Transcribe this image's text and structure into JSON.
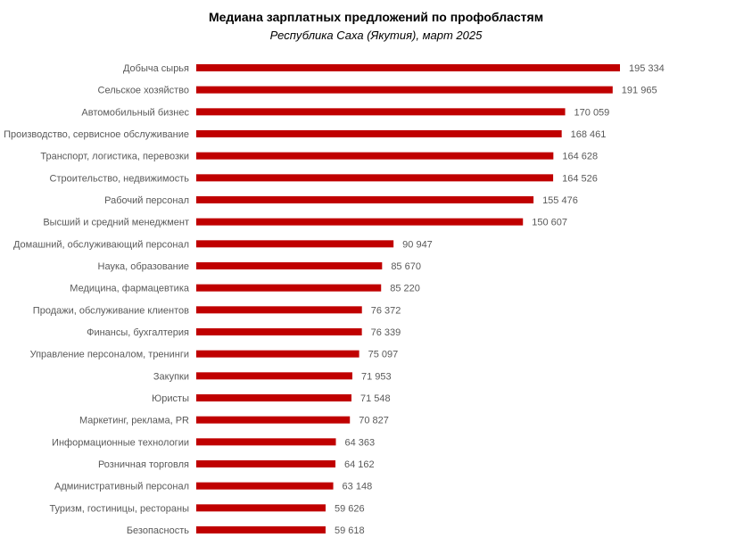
{
  "chart_data": {
    "type": "bar",
    "orientation": "horizontal",
    "title": "Медиана зарплатных предложений по профобластям",
    "subtitle": "Республика Саха (Якутия), март 2025",
    "xlabel": "",
    "ylabel": "",
    "grid": false,
    "legend": "none",
    "bar_color": "#c00000",
    "categories": [
      "Добыча сырья",
      "Сельское хозяйство",
      "Автомобильный бизнес",
      "Производство, сервисное обслуживание",
      "Транспорт, логистика, перевозки",
      "Строительство, недвижимость",
      "Рабочий персонал",
      "Высший и средний менеджмент",
      "Домашний, обслуживающий персонал",
      "Наука, образование",
      "Медицина, фармацевтика",
      "Продажи, обслуживание клиентов",
      "Финансы, бухгалтерия",
      "Управление персоналом, тренинги",
      "Закупки",
      "Юристы",
      "Маркетинг, реклама, PR",
      "Информационные технологии",
      "Розничная торговля",
      "Административный персонал",
      "Туризм, гостиницы, рестораны",
      "Безопасность"
    ],
    "values": [
      195334,
      191965,
      170059,
      168461,
      164628,
      164526,
      155476,
      150607,
      90947,
      85670,
      85220,
      76372,
      76339,
      75097,
      71953,
      71548,
      70827,
      64363,
      64162,
      63148,
      59626,
      59618
    ],
    "value_labels": [
      "195 334",
      "191 965",
      "170 059",
      "168 461",
      "164 628",
      "164 526",
      "155 476",
      "150 607",
      "90 947",
      "85 670",
      "85 220",
      "76 372",
      "76 339",
      "75 097",
      "71 953",
      "71 548",
      "70 827",
      "64 363",
      "64 162",
      "63 148",
      "59 626",
      "59 618"
    ]
  }
}
